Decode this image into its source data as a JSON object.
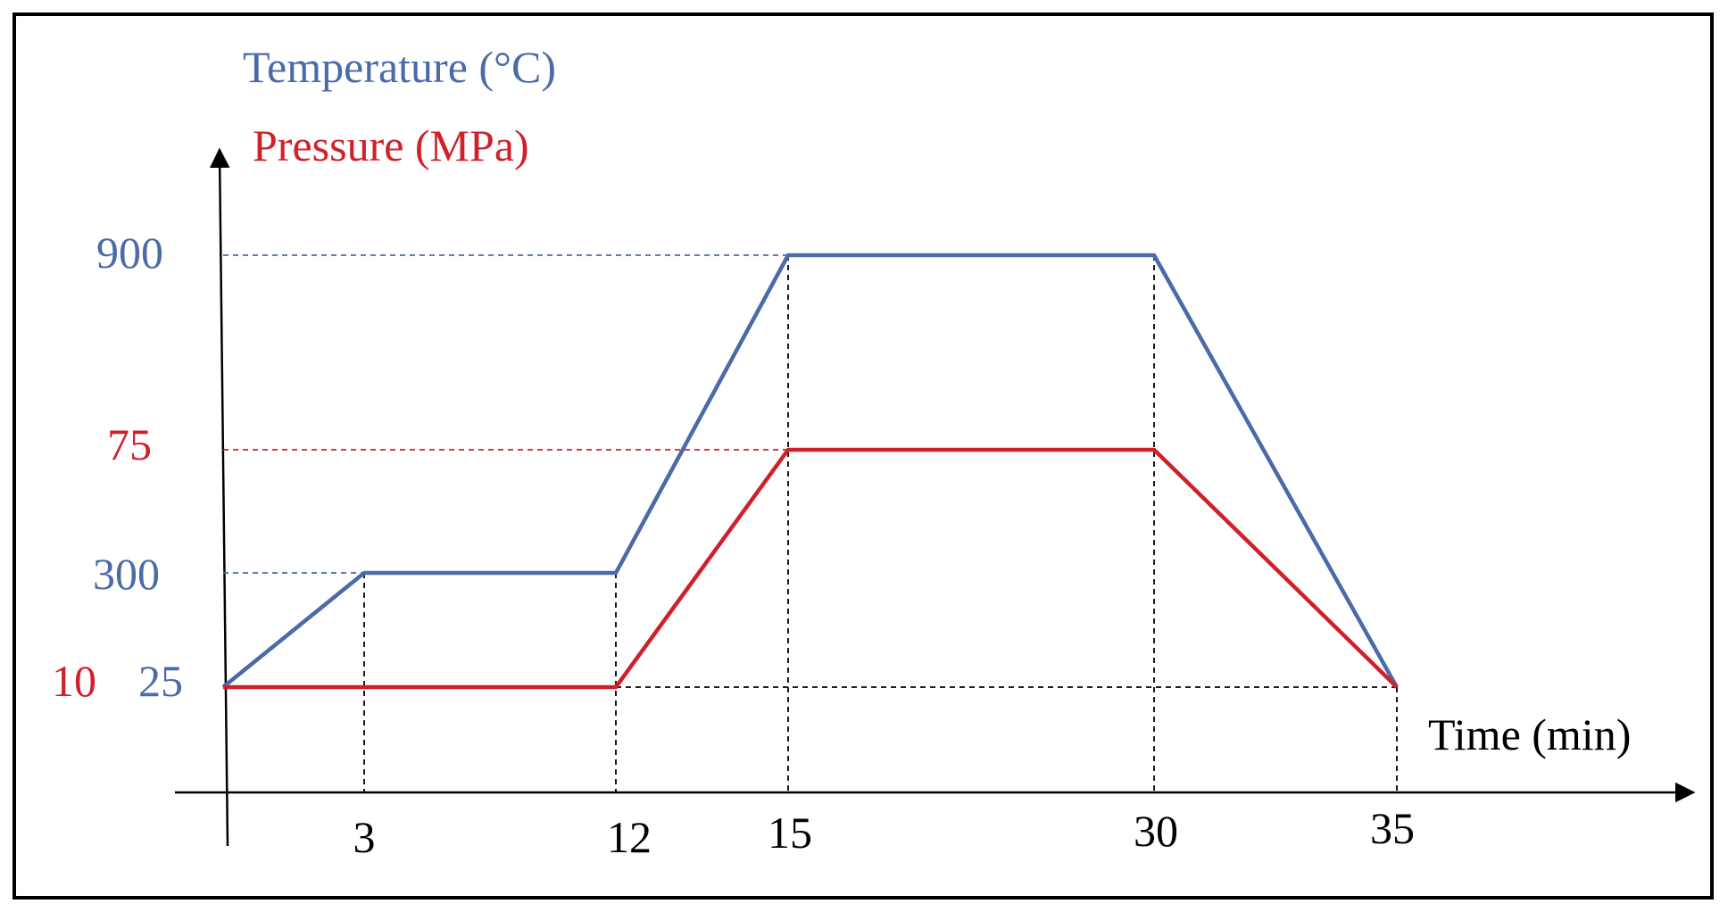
{
  "chart_data": {
    "type": "line",
    "legend": [
      {
        "label": "Temperature (°C)",
        "color": "#4a6aa8"
      },
      {
        "label": "Pressure (MPa)",
        "color": "#d0202a"
      }
    ],
    "xlabel": "Time (min)",
    "x_ticks": [
      "3",
      "12",
      "15",
      "30",
      "35"
    ],
    "series": [
      {
        "name": "Temperature (°C)",
        "color": "#4a6aa8",
        "points": [
          [
            0,
            25
          ],
          [
            3,
            300
          ],
          [
            12,
            300
          ],
          [
            15,
            900
          ],
          [
            30,
            900
          ],
          [
            35,
            25
          ]
        ],
        "y_ticks": [
          "25",
          "300",
          "900"
        ]
      },
      {
        "name": "Pressure (MPa)",
        "color": "#d0202a",
        "points": [
          [
            0,
            10
          ],
          [
            12,
            10
          ],
          [
            15,
            75
          ],
          [
            30,
            75
          ],
          [
            35,
            10
          ]
        ],
        "y_ticks": [
          "10",
          "75"
        ]
      }
    ],
    "grid": "dashed reference lines at key values",
    "legend_position": "top-left"
  }
}
